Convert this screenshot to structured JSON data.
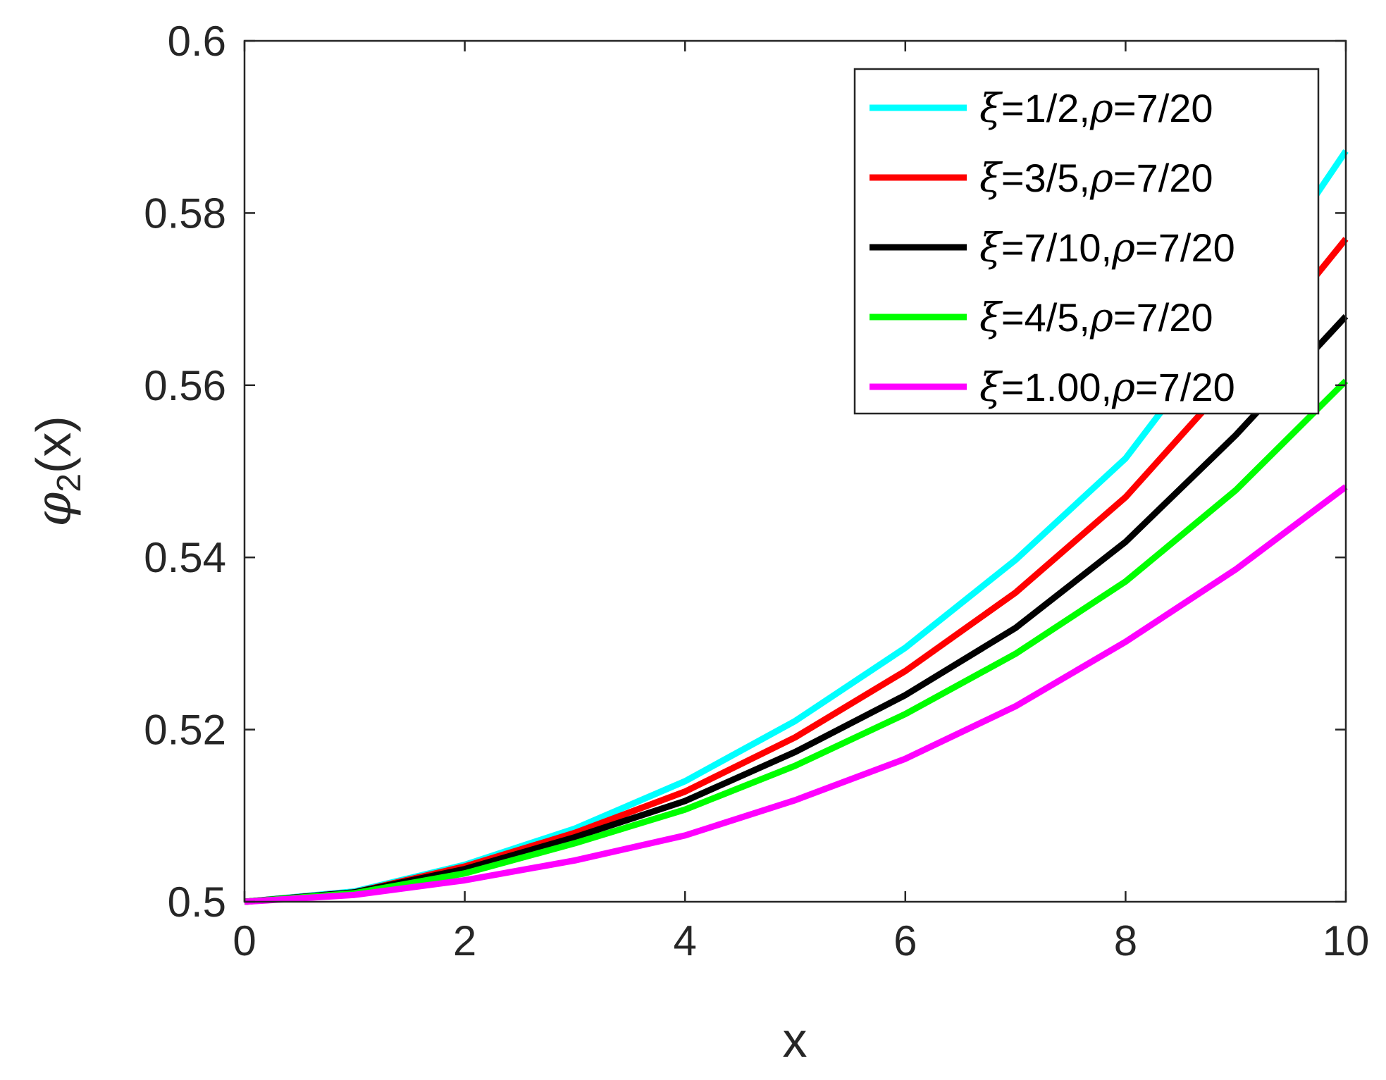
{
  "chart_data": {
    "type": "line",
    "title": "",
    "xlabel": "x",
    "ylabel": {
      "symbol": "φ",
      "subscript": "2",
      "suffix": "(x)"
    },
    "xlim": [
      0,
      10
    ],
    "ylim": [
      0.5,
      0.6
    ],
    "xticks": [
      0,
      2,
      4,
      6,
      8,
      10
    ],
    "yticks": [
      0.5,
      0.52,
      0.54,
      0.56,
      0.58,
      0.6
    ],
    "xtick_labels": [
      "0",
      "2",
      "4",
      "6",
      "8",
      "10"
    ],
    "ytick_labels": [
      "0.5",
      "0.52",
      "0.54",
      "0.56",
      "0.58",
      "0.6"
    ],
    "grid": false,
    "legend_position": "top-right",
    "x": [
      0,
      1,
      2,
      3,
      4,
      5,
      6,
      7,
      8,
      9,
      10
    ],
    "series": [
      {
        "name": "ξ=1/2,ρ=7/20",
        "label_parts": [
          "ξ",
          "=1/2,",
          "ρ",
          "=7/20"
        ],
        "color": "#00FFFF",
        "values": [
          0.5,
          0.5012,
          0.5043,
          0.5085,
          0.514,
          0.521,
          0.5295,
          0.5397,
          0.5515,
          0.5683,
          0.5872
        ]
      },
      {
        "name": "ξ=3/5,ρ=7/20",
        "label_parts": [
          "ξ",
          "=3/5,",
          "ρ",
          "=7/20"
        ],
        "color": "#FF0000",
        "values": [
          0.5,
          0.5011,
          0.5041,
          0.508,
          0.5128,
          0.5191,
          0.5268,
          0.5359,
          0.547,
          0.5612,
          0.577
        ]
      },
      {
        "name": "ξ=7/10,ρ=7/20",
        "label_parts": [
          "ξ",
          "=7/10,",
          "ρ",
          "=7/20"
        ],
        "color": "#000000",
        "values": [
          0.5,
          0.5011,
          0.5038,
          0.5075,
          0.5117,
          0.5174,
          0.524,
          0.5318,
          0.5418,
          0.5542,
          0.568
        ]
      },
      {
        "name": "ξ=4/5,ρ=7/20",
        "label_parts": [
          "ξ",
          "=4/5,",
          "ρ",
          "=7/20"
        ],
        "color": "#00FF00",
        "values": [
          0.5,
          0.501,
          0.5033,
          0.5068,
          0.5107,
          0.5158,
          0.5218,
          0.5288,
          0.5372,
          0.5478,
          0.5605
        ]
      },
      {
        "name": "ξ=1.00,ρ=7/20",
        "label_parts": [
          "ξ",
          "=1.00,",
          "ρ",
          "=7/20"
        ],
        "color": "#FF00FF",
        "values": [
          0.5,
          0.5008,
          0.5025,
          0.5048,
          0.5077,
          0.5118,
          0.5166,
          0.5227,
          0.5302,
          0.5386,
          0.5482
        ]
      }
    ]
  }
}
